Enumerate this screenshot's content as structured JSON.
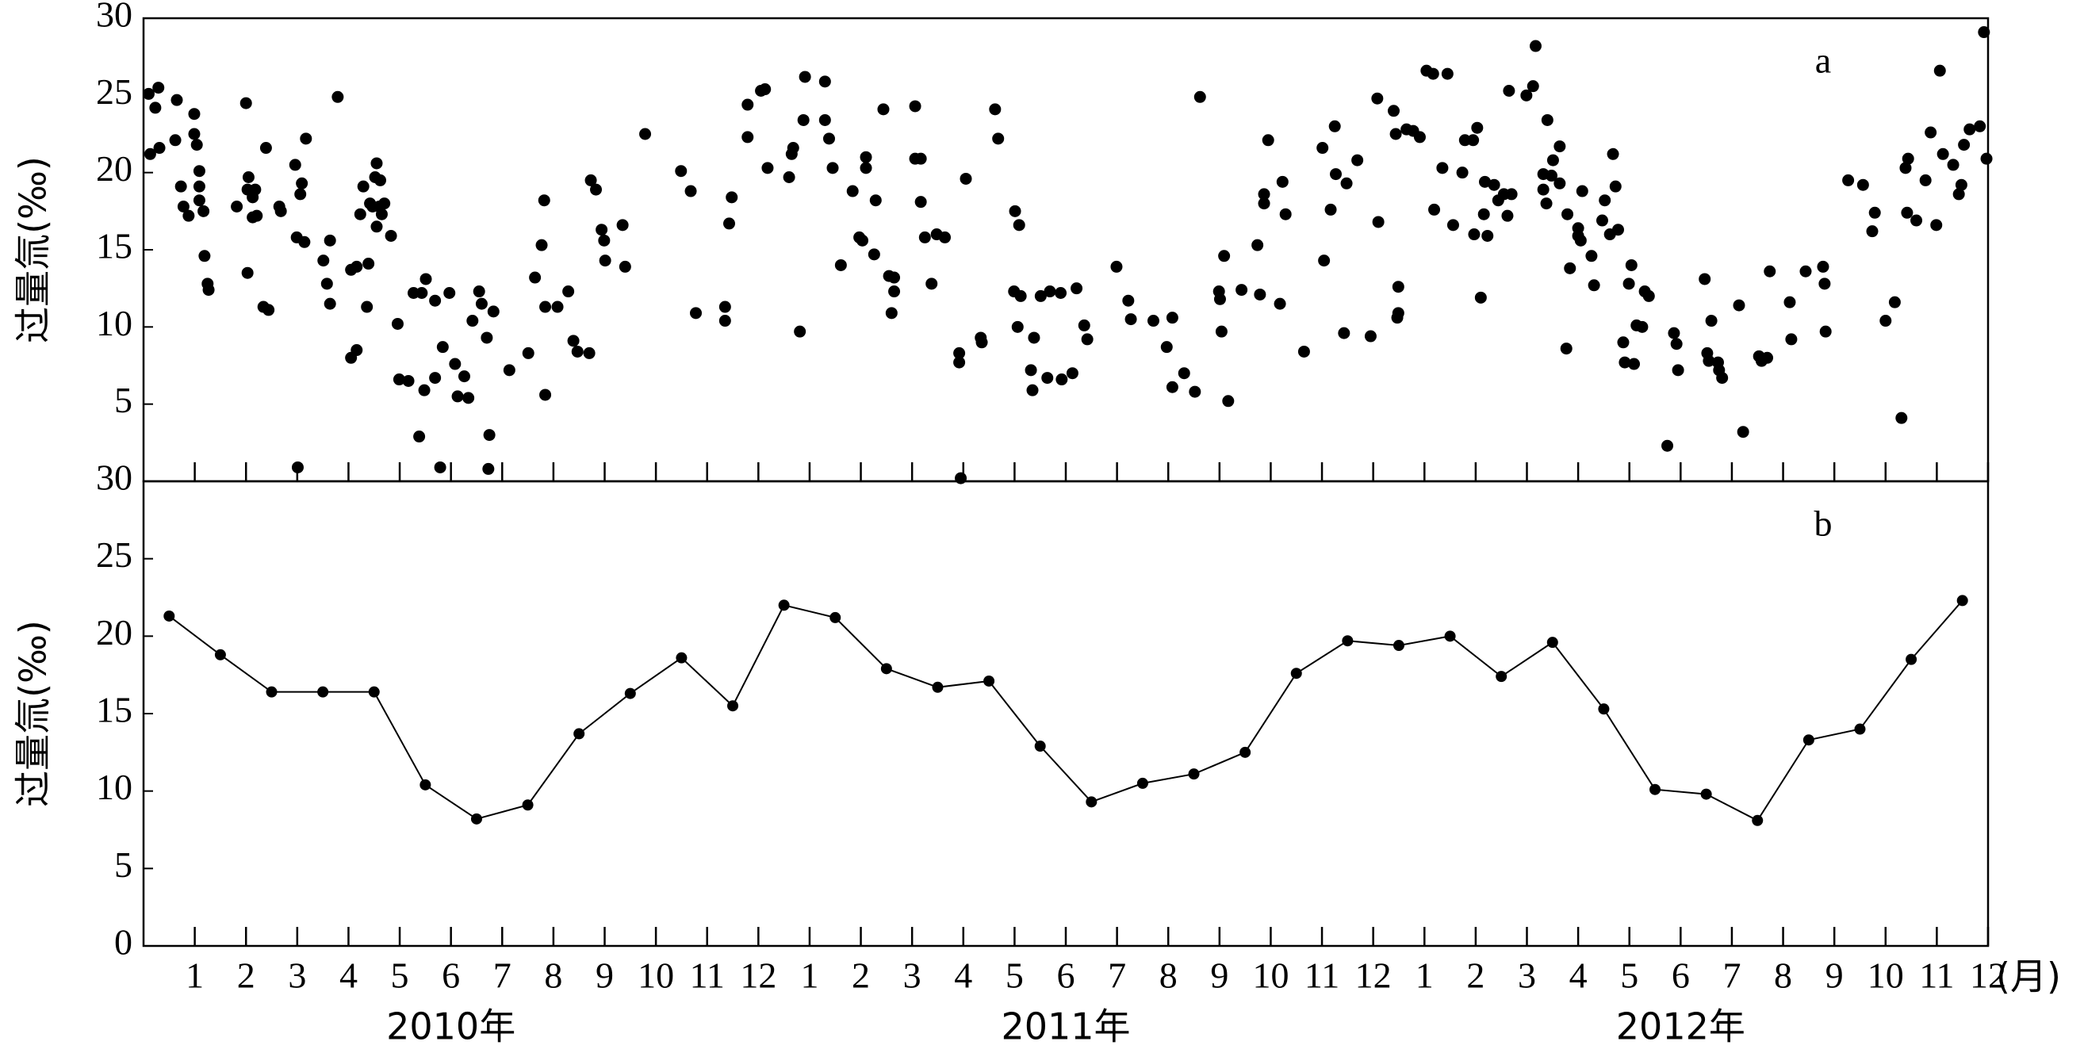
{
  "chart_data": [
    {
      "type": "scatter",
      "label": "a",
      "ylabel": "过量氚(‰)",
      "color": "#000000",
      "xlim": [
        0,
        36
      ],
      "ylim": [
        0,
        30
      ],
      "yticks": [
        5,
        10,
        15,
        20,
        25,
        30
      ],
      "x": [
        0.1,
        0.23,
        0.29,
        0.13,
        0.31,
        0.65,
        0.62,
        0.73,
        0.78,
        0.88,
        0.99,
        0.99,
        1.04,
        1.09,
        1.09,
        1.09,
        1.17,
        1.19,
        1.25,
        1.27,
        1.82,
        2.0,
        2.05,
        2.03,
        2.13,
        2.18,
        2.13,
        2.21,
        2.03,
        2.34,
        2.44,
        2.39,
        2.65,
        2.68,
        2.96,
        3.09,
        3.06,
        2.99,
        3.14,
        3.17,
        3.01,
        3.51,
        3.58,
        3.64,
        3.64,
        3.79,
        4.05,
        4.16,
        4.05,
        4.16,
        4.23,
        4.29,
        4.42,
        4.39,
        4.36,
        4.55,
        4.52,
        4.62,
        4.47,
        4.6,
        4.65,
        4.55,
        4.7,
        4.83,
        4.96,
        4.99,
        5.17,
        5.27,
        5.43,
        5.51,
        5.69,
        5.38,
        5.48,
        5.84,
        5.69,
        5.79,
        5.97,
        6.08,
        6.13,
        6.34,
        6.26,
        6.42,
        6.55,
        6.6,
        6.7,
        6.83,
        6.75,
        6.73,
        7.14,
        7.51,
        7.64,
        7.77,
        7.82,
        7.84,
        7.84,
        8.08,
        8.29,
        8.39,
        8.47,
        8.7,
        8.73,
        8.83,
        8.94,
        8.99,
        9.01,
        9.35,
        9.4,
        9.79,
        10.49,
        10.68,
        10.78,
        11.35,
        11.35,
        11.43,
        11.48,
        11.79,
        11.79,
        12.05,
        12.13,
        12.18,
        12.6,
        12.65,
        12.68,
        12.81,
        12.88,
        12.91,
        13.3,
        13.3,
        13.38,
        13.45,
        13.61,
        13.84,
        13.97,
        14.03,
        14.1,
        14.1,
        14.26,
        14.29,
        14.44,
        14.55,
        14.6,
        14.65,
        14.65,
        15.06,
        15.06,
        15.17,
        15.17,
        15.25,
        15.38,
        15.48,
        15.64,
        15.95,
        15.92,
        15.92,
        16.05,
        16.34,
        16.36,
        16.62,
        16.68,
        17.01,
        17.09,
        16.99,
        17.06,
        17.12,
        17.32,
        17.35,
        17.38,
        17.51,
        17.64,
        17.69,
        17.9,
        17.92,
        18.13,
        18.21,
        18.36,
        18.42,
        18.99,
        19.22,
        19.27,
        19.71,
        19.97,
        20.08,
        20.08,
        20.31,
        20.52,
        20.62,
        20.99,
        21.01,
        21.04,
        21.09,
        21.17,
        21.43,
        21.74,
        21.79,
        21.87,
        21.87,
        21.95,
        22.18,
        22.23,
        22.29,
        22.65,
        23.01,
        23.04,
        23.17,
        23.25,
        23.27,
        23.43,
        23.48,
        23.69,
        23.95,
        24.08,
        24.1,
        24.4,
        24.44,
        24.49,
        24.49,
        24.47,
        24.65,
        24.78,
        24.91,
        25.04,
        25.17,
        25.19,
        25.35,
        25.45,
        25.56,
        25.74,
        25.79,
        25.95,
        25.97,
        26.03,
        26.1,
        26.16,
        26.23,
        26.18,
        26.36,
        26.44,
        26.55,
        26.62,
        26.7,
        26.65,
        26.99,
        27.12,
        27.17,
        27.32,
        27.38,
        27.32,
        27.4,
        27.48,
        27.51,
        27.64,
        27.64,
        27.77,
        27.84,
        27.79,
        28.0,
        28.0,
        28.05,
        28.08,
        28.26,
        28.31,
        28.47,
        28.52,
        28.62,
        28.68,
        28.73,
        28.78,
        28.88,
        28.91,
        29.04,
        28.99,
        29.09,
        29.14,
        29.25,
        29.3,
        29.38,
        29.74,
        29.87,
        29.92,
        29.95,
        30.47,
        30.52,
        30.6,
        30.55,
        30.73,
        30.75,
        30.81,
        31.14,
        31.22,
        31.53,
        31.58,
        31.69,
        31.74,
        32.13,
        32.16,
        32.44,
        32.78,
        32.81,
        32.83,
        33.27,
        33.56,
        33.74,
        33.79,
        34.0,
        34.18,
        34.31,
        34.39,
        34.44,
        34.42,
        34.6,
        34.78,
        34.88,
        34.99,
        35.06,
        35.12,
        35.32,
        35.43,
        35.48,
        35.53,
        35.64,
        35.84,
        35.92,
        35.97
      ],
      "values": [
        25.1,
        24.2,
        25.5,
        21.2,
        21.6,
        24.7,
        22.1,
        19.1,
        17.8,
        17.2,
        23.8,
        22.5,
        21.8,
        20.1,
        19.1,
        18.2,
        17.5,
        14.6,
        12.8,
        12.4,
        17.8,
        24.5,
        19.7,
        18.9,
        18.4,
        18.9,
        17.1,
        17.2,
        13.5,
        11.3,
        11.1,
        21.6,
        17.8,
        17.5,
        20.5,
        19.3,
        18.6,
        15.8,
        15.5,
        22.2,
        0.9,
        14.3,
        12.8,
        15.6,
        11.5,
        24.9,
        13.7,
        13.9,
        8.0,
        8.5,
        17.3,
        19.1,
        18.0,
        14.1,
        11.3,
        20.6,
        19.7,
        19.5,
        17.8,
        17.8,
        17.3,
        16.5,
        18.0,
        15.9,
        10.2,
        6.6,
        6.5,
        12.2,
        12.2,
        13.1,
        11.7,
        2.9,
        5.9,
        8.7,
        6.7,
        0.9,
        12.2,
        7.6,
        5.5,
        5.4,
        6.8,
        10.4,
        12.3,
        11.5,
        9.3,
        11.0,
        3.0,
        0.8,
        7.2,
        8.3,
        13.2,
        15.3,
        18.2,
        5.6,
        11.3,
        11.3,
        12.3,
        9.1,
        8.4,
        8.3,
        19.5,
        18.9,
        16.3,
        15.6,
        14.3,
        16.6,
        13.9,
        22.5,
        20.1,
        18.8,
        10.9,
        11.3,
        10.4,
        16.7,
        18.4,
        22.3,
        24.4,
        25.3,
        25.4,
        20.3,
        19.7,
        21.2,
        21.6,
        9.7,
        23.4,
        26.2,
        25.9,
        23.4,
        22.2,
        20.3,
        14.0,
        18.8,
        15.8,
        15.6,
        21.0,
        20.3,
        14.7,
        18.2,
        24.1,
        13.3,
        10.9,
        12.3,
        13.2,
        24.3,
        20.9,
        20.9,
        18.1,
        15.8,
        12.8,
        16.0,
        15.8,
        0.2,
        8.3,
        7.7,
        19.6,
        9.3,
        9.0,
        24.1,
        22.2,
        17.5,
        16.6,
        12.3,
        10.0,
        12.0,
        7.2,
        5.9,
        9.3,
        12.0,
        6.7,
        12.3,
        12.2,
        6.6,
        7.0,
        12.5,
        10.1,
        9.2,
        13.9,
        11.7,
        10.5,
        10.4,
        8.7,
        10.6,
        6.1,
        7.0,
        5.8,
        24.9,
        12.3,
        11.8,
        9.7,
        14.6,
        5.2,
        12.4,
        15.3,
        12.1,
        18.6,
        18.0,
        22.1,
        11.5,
        19.4,
        17.3,
        8.4,
        21.6,
        14.3,
        17.6,
        23.0,
        19.9,
        9.6,
        19.3,
        20.8,
        9.4,
        24.8,
        16.8,
        24.0,
        22.5,
        12.6,
        10.9,
        10.6,
        22.8,
        22.7,
        22.3,
        26.6,
        26.4,
        17.6,
        20.3,
        26.4,
        16.6,
        20.0,
        22.1,
        22.1,
        16.0,
        22.9,
        11.9,
        17.3,
        15.9,
        19.4,
        19.2,
        18.2,
        18.6,
        17.2,
        18.6,
        25.3,
        25.0,
        25.6,
        28.2,
        19.9,
        18.0,
        18.9,
        23.4,
        19.8,
        20.8,
        21.7,
        19.3,
        8.6,
        13.8,
        17.3,
        16.4,
        15.9,
        15.6,
        18.8,
        14.6,
        12.7,
        16.9,
        18.2,
        16.0,
        21.2,
        19.1,
        16.3,
        9.0,
        7.7,
        14.0,
        12.8,
        7.6,
        10.1,
        10.0,
        12.3,
        12.0,
        2.3,
        9.6,
        8.9,
        7.2,
        13.1,
        8.3,
        10.4,
        7.8,
        7.7,
        7.2,
        6.7,
        11.4,
        3.2,
        8.1,
        7.8,
        8.0,
        13.6,
        11.6,
        9.2,
        13.6,
        13.9,
        12.8,
        9.7,
        19.5,
        19.2,
        16.2,
        17.4,
        10.4,
        11.6,
        4.1,
        20.3,
        20.9,
        17.4,
        16.9,
        19.5,
        22.6,
        16.6,
        26.6,
        21.2,
        20.5,
        18.6,
        19.2,
        21.8,
        22.8,
        23.0,
        29.1,
        20.9
      ]
    },
    {
      "type": "line",
      "label": "b",
      "ylabel": "过量氚(‰)",
      "xlabel": "(月)",
      "color": "#000000",
      "x_group_labels": [
        "2010年",
        "2011年",
        "2012年"
      ],
      "xlim": [
        0,
        36
      ],
      "ylim": [
        0,
        30
      ],
      "yticks": [
        0,
        5,
        10,
        15,
        20,
        25,
        30
      ],
      "xticks": [
        1,
        2,
        3,
        4,
        5,
        6,
        7,
        8,
        9,
        10,
        11,
        12,
        {
          "value": 13,
          "label": "1"
        },
        {
          "value": 14,
          "label": "2"
        },
        {
          "value": 15,
          "label": "3"
        },
        {
          "value": 16,
          "label": "4"
        },
        {
          "value": 17,
          "label": "5"
        },
        {
          "value": 18,
          "label": "6"
        },
        {
          "value": 19,
          "label": "7"
        },
        {
          "value": 20,
          "label": "8"
        },
        {
          "value": 21,
          "label": "9"
        },
        {
          "value": 22,
          "label": "10"
        },
        {
          "value": 23,
          "label": "11"
        },
        {
          "value": 24,
          "label": "12"
        },
        {
          "value": 25,
          "label": "1"
        },
        {
          "value": 26,
          "label": "2"
        },
        {
          "value": 27,
          "label": "3"
        },
        {
          "value": 28,
          "label": "4"
        },
        {
          "value": 29,
          "label": "5"
        },
        {
          "value": 30,
          "label": "6"
        },
        {
          "value": 31,
          "label": "7"
        },
        {
          "value": 32,
          "label": "8"
        },
        {
          "value": 33,
          "label": "9"
        },
        {
          "value": 34,
          "label": "10"
        },
        {
          "value": 35,
          "label": "11"
        },
        {
          "value": 36,
          "label": "12"
        }
      ],
      "x": [
        0.5,
        1.5,
        2.5,
        3.5,
        4.5,
        5.5,
        6.5,
        7.5,
        8.5,
        9.5,
        10.5,
        11.5,
        12.5,
        13.5,
        14.5,
        15.5,
        16.5,
        17.5,
        18.5,
        19.5,
        20.5,
        21.5,
        22.5,
        23.5,
        24.5,
        25.5,
        26.5,
        27.5,
        28.5,
        29.5,
        30.5,
        31.5,
        32.5,
        33.5,
        34.5,
        35.5
      ],
      "values": [
        21.3,
        18.8,
        16.4,
        16.4,
        16.4,
        10.4,
        8.2,
        9.1,
        13.7,
        16.3,
        18.6,
        15.5,
        22,
        21.2,
        17.9,
        16.7,
        17.1,
        12.9,
        9.3,
        10.5,
        11.1,
        12.5,
        17.6,
        19.7,
        19.4,
        20,
        17.4,
        19.6,
        15.3,
        10.1,
        9.8,
        8.1,
        13.3,
        14,
        18.5,
        22.3
      ]
    }
  ]
}
